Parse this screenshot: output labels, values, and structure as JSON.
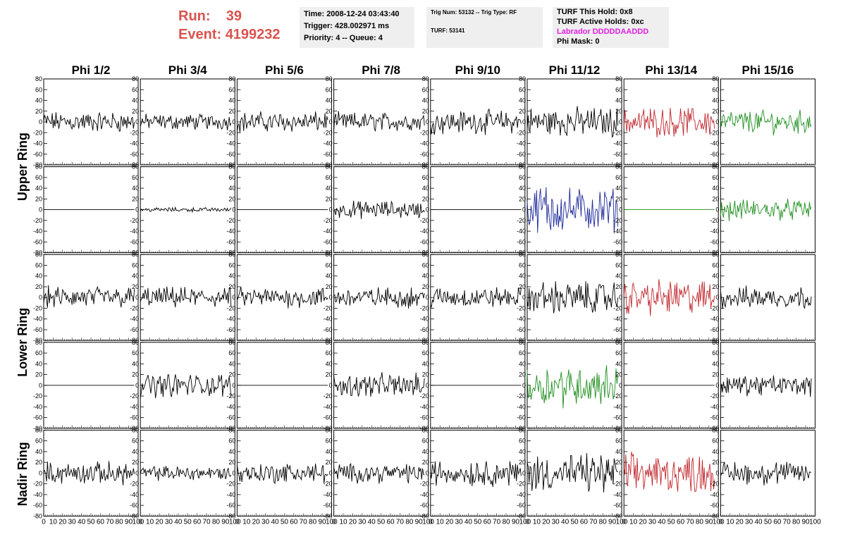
{
  "header": {
    "run_label": "Run:",
    "run_value": "39",
    "event_label": "Event:",
    "event_value": "4199232",
    "time": "Time: 2008-12-24 03:43:40",
    "trigger": "Trigger: 428.002971 ms",
    "priority": "Priority: 4 -- Queue: 4",
    "trig_num": "Trig Num: 53132 -- Trig Type: RF",
    "turf": "TURF: 53141",
    "turf_hold": "TURF This Hold: 0x8",
    "turf_active": "TURF Active Holds: 0xc",
    "labrador": "Labrador DDDDDAADDD",
    "phi_mask": "Phi Mask: 0"
  },
  "colors": {
    "run_text": "#d9534f",
    "labrador_text": "#e020e0",
    "box_bg": "#efefef",
    "black": "#000000",
    "red": "#c0262c",
    "green": "#1f8f1f",
    "blue": "#1e2a9a"
  },
  "chart_data": {
    "type": "line",
    "columns": [
      "Phi 1/2",
      "Phi 3/4",
      "Phi 5/6",
      "Phi 7/8",
      "Phi 9/10",
      "Phi 11/12",
      "Phi 13/14",
      "Phi 15/16"
    ],
    "ring_labels": [
      "Upper Ring",
      "Lower Ring",
      "Nadir Ring"
    ],
    "rows_per_ring": [
      2,
      2,
      1
    ],
    "ylim": [
      -80,
      80
    ],
    "yticks": [
      80,
      60,
      40,
      20,
      0,
      -20,
      -40,
      -60,
      -80
    ],
    "ytick_labels": [
      "80",
      "60",
      "40",
      "20",
      "0",
      "-20",
      "-40",
      "-60",
      "-80"
    ],
    "xlim": [
      0,
      100
    ],
    "xticks": [
      0,
      10,
      20,
      30,
      40,
      50,
      60,
      70,
      80,
      90,
      100
    ],
    "xtick_labels": [
      "0",
      "10",
      "20",
      "30",
      "40",
      "50",
      "60",
      "70",
      "80",
      "90",
      "100"
    ],
    "trace_length": 97,
    "panels": [
      [
        {
          "color": "black",
          "amp": 14
        },
        {
          "color": "black",
          "amp": 11
        },
        {
          "color": "black",
          "amp": 14
        },
        {
          "color": "black",
          "amp": 13
        },
        {
          "color": "black",
          "amp": 16
        },
        {
          "color": "black",
          "amp": 20
        },
        {
          "color": "red",
          "amp": 20
        },
        {
          "color": "green",
          "amp": 16
        }
      ],
      [
        {
          "color": "black",
          "amp": 0
        },
        {
          "color": "black",
          "amp": 3
        },
        {
          "color": "black",
          "amp": 0
        },
        {
          "color": "black",
          "amp": 12
        },
        {
          "color": "black",
          "amp": 0
        },
        {
          "color": "blue",
          "amp": 30
        },
        {
          "color": "green",
          "amp": 0
        },
        {
          "color": "green",
          "amp": 14
        }
      ],
      [
        {
          "color": "black",
          "amp": 15
        },
        {
          "color": "black",
          "amp": 14
        },
        {
          "color": "black",
          "amp": 14
        },
        {
          "color": "black",
          "amp": 14
        },
        {
          "color": "black",
          "amp": 14
        },
        {
          "color": "black",
          "amp": 22
        },
        {
          "color": "red",
          "amp": 24
        },
        {
          "color": "black",
          "amp": 15
        }
      ],
      [
        {
          "color": "black",
          "amp": 0
        },
        {
          "color": "black",
          "amp": 16
        },
        {
          "color": "black",
          "amp": 0
        },
        {
          "color": "black",
          "amp": 16
        },
        {
          "color": "black",
          "amp": 0
        },
        {
          "color": "green",
          "amp": 28
        },
        {
          "color": "black",
          "amp": 0
        },
        {
          "color": "black",
          "amp": 14
        }
      ],
      [
        {
          "color": "black",
          "amp": 15
        },
        {
          "color": "black",
          "amp": 10
        },
        {
          "color": "black",
          "amp": 14
        },
        {
          "color": "black",
          "amp": 13
        },
        {
          "color": "black",
          "amp": 18
        },
        {
          "color": "black",
          "amp": 26
        },
        {
          "color": "red",
          "amp": 26
        },
        {
          "color": "black",
          "amp": 16
        }
      ]
    ]
  }
}
